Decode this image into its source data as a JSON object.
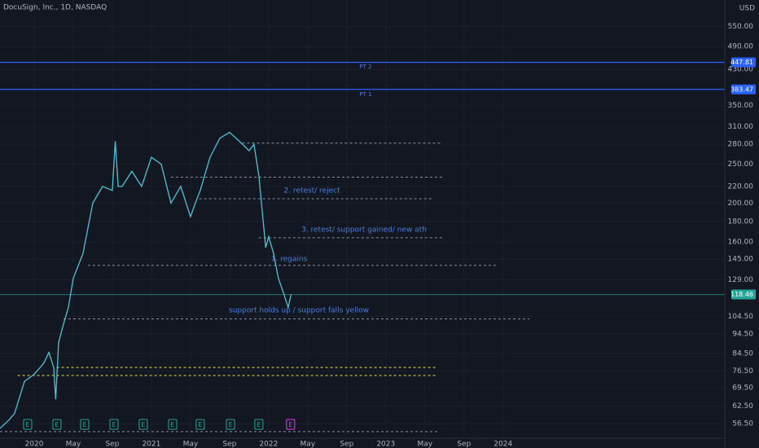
{
  "header": "DocuSign, Inc., 1D, NASDAQ",
  "chart_data": {
    "type": "line",
    "currency": "USD",
    "log_scale": true,
    "grid": true,
    "xlim": [
      -3.5,
      70.7
    ],
    "ylim": [
      52,
      640
    ],
    "xticks": [
      {
        "value": 0,
        "label": "2020"
      },
      {
        "value": 4,
        "label": "May"
      },
      {
        "value": 8,
        "label": "Sep"
      },
      {
        "value": 12,
        "label": "2021"
      },
      {
        "value": 16,
        "label": "May"
      },
      {
        "value": 20,
        "label": "Sep"
      },
      {
        "value": 24,
        "label": "2022"
      },
      {
        "value": 28,
        "label": "May"
      },
      {
        "value": 32,
        "label": "Sep"
      },
      {
        "value": 36,
        "label": "2023"
      },
      {
        "value": 40,
        "label": "May"
      },
      {
        "value": 44,
        "label": "Sep"
      },
      {
        "value": 48,
        "label": "2024"
      }
    ],
    "yticks": [
      {
        "value": 56.5,
        "label": "56.50"
      },
      {
        "value": 62.5,
        "label": "62.50"
      },
      {
        "value": 69.5,
        "label": "69.50"
      },
      {
        "value": 76.5,
        "label": "76.50"
      },
      {
        "value": 84.5,
        "label": "84.50"
      },
      {
        "value": 94.5,
        "label": "94.50"
      },
      {
        "value": 104.5,
        "label": "104.50"
      },
      {
        "value": 129,
        "label": "129.00"
      },
      {
        "value": 145,
        "label": "145.00"
      },
      {
        "value": 160,
        "label": "160.00"
      },
      {
        "value": 180,
        "label": "180.00"
      },
      {
        "value": 200,
        "label": "200.00"
      },
      {
        "value": 220,
        "label": "220.00"
      },
      {
        "value": 250,
        "label": "250.00"
      },
      {
        "value": 280,
        "label": "280.00"
      },
      {
        "value": 310,
        "label": "310.00"
      },
      {
        "value": 350,
        "label": "350.00"
      },
      {
        "value": 430,
        "label": "430.00"
      },
      {
        "value": 490,
        "label": "490.00"
      },
      {
        "value": 550,
        "label": "550.00"
      }
    ],
    "series": [
      {
        "name": "DOCU",
        "color": "#4fc3d6",
        "x": [
          -3.5,
          -2.5,
          -2,
          -1,
          0,
          1,
          1.5,
          2,
          2.2,
          2.5,
          3,
          3.5,
          4,
          5,
          6,
          7,
          8,
          8.3,
          8.6,
          9,
          10,
          11,
          12,
          13,
          14,
          15,
          16,
          16.5,
          17,
          18,
          19,
          20,
          21,
          22,
          22.5,
          23,
          23.7,
          24,
          24.5,
          25,
          25.5,
          26,
          26.3
        ],
        "values": [
          55,
          58,
          60,
          72,
          75,
          80,
          85,
          78,
          65,
          90,
          100,
          110,
          130,
          150,
          200,
          220,
          215,
          285,
          220,
          220,
          240,
          220,
          260,
          250,
          200,
          220,
          185,
          200,
          215,
          260,
          290,
          300,
          285,
          270,
          280,
          234,
          155,
          165,
          150,
          130,
          120,
          110,
          118.46
        ]
      }
    ],
    "levels": [
      {
        "value": 447.81,
        "label": "447.81",
        "color": "#2962ff",
        "style": "solid",
        "start": -3.5,
        "end": 70.7
      },
      {
        "value": 383.47,
        "label": "383.47",
        "color": "#2962ff",
        "style": "solid",
        "start": -3.5,
        "end": 70.7
      },
      {
        "value": 118.46,
        "label": "118.46",
        "color": "#26a69a",
        "style": "solid",
        "start": -3.5,
        "end": 70.7
      },
      {
        "value": 282,
        "color": "#8a8f9c",
        "style": "dashed",
        "start": 21.3,
        "end": 41.6
      },
      {
        "value": 232,
        "color": "#8a8f9c",
        "style": "dashed",
        "start": 14,
        "end": 41.9
      },
      {
        "value": 205,
        "color": "#8a8f9c",
        "style": "dashed",
        "start": 16.9,
        "end": 40.7
      },
      {
        "value": 164,
        "color": "#8a8f9c",
        "style": "dashed",
        "start": 23,
        "end": 41.9
      },
      {
        "value": 140,
        "color": "#8a8f9c",
        "style": "dashed",
        "start": 5.5,
        "end": 47.5
      },
      {
        "value": 103,
        "color": "#8a8f9c",
        "style": "dashed",
        "start": 3,
        "end": 50.7
      },
      {
        "value": 78,
        "color": "#e8e24a",
        "style": "dashed",
        "start": 2.3,
        "end": 41.3
      },
      {
        "value": 74.5,
        "color": "#e8e24a",
        "style": "dashed",
        "start": -1.7,
        "end": 41.3
      },
      {
        "value": 54,
        "color": "#8a8f9c",
        "style": "dashed",
        "start": -3.5,
        "end": 41.3
      }
    ],
    "events": [
      {
        "x": -0.67,
        "label": "E",
        "color": "#26a69a"
      },
      {
        "x": 2.33,
        "label": "E",
        "color": "#26a69a"
      },
      {
        "x": 5.17,
        "label": "E",
        "color": "#26a69a"
      },
      {
        "x": 8.17,
        "label": "E",
        "color": "#26a69a"
      },
      {
        "x": 11.17,
        "label": "E",
        "color": "#26a69a"
      },
      {
        "x": 14.17,
        "label": "E",
        "color": "#26a69a"
      },
      {
        "x": 17,
        "label": "E",
        "color": "#26a69a"
      },
      {
        "x": 20.1,
        "label": "E",
        "color": "#26a69a"
      },
      {
        "x": 23,
        "label": "E",
        "color": "#26a69a"
      },
      {
        "x": 26.25,
        "label": "E",
        "color": "#e040fb"
      }
    ],
    "annotations": [
      "PT 2",
      "PT 1",
      "2. retest/ reject",
      "3. retest/ support gained/ new ath",
      "1. regains",
      "support holds up / support falls yellow"
    ]
  }
}
